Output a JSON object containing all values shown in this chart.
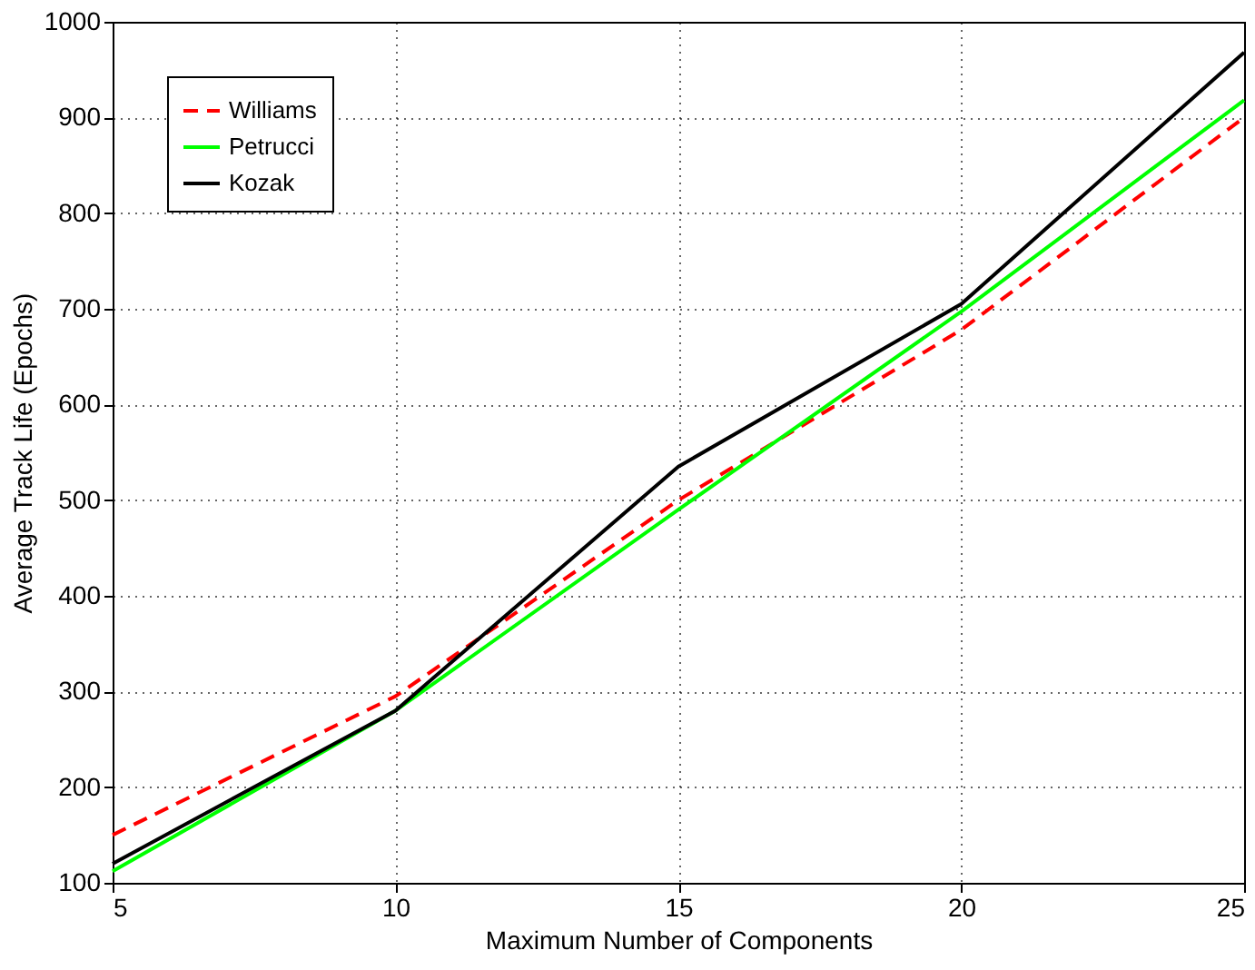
{
  "chart_data": {
    "type": "line",
    "xlabel": "Maximum Number of Components",
    "ylabel": "Average Track Life (Epochs)",
    "x": [
      5,
      10,
      15,
      20,
      25
    ],
    "xlim": [
      5,
      25
    ],
    "xticks": [
      5,
      10,
      15,
      20,
      25
    ],
    "ylim": [
      100,
      1000
    ],
    "yticks": [
      100,
      200,
      300,
      400,
      500,
      600,
      700,
      800,
      900,
      1000
    ],
    "grid": true,
    "legend": "top left",
    "series": [
      {
        "name": "Williams",
        "color": "#ff0000",
        "line_style": "dashed",
        "values": [
          150,
          295,
          500,
          678,
          900
        ]
      },
      {
        "name": "Petrucci",
        "color": "#00ff00",
        "line_style": "solid",
        "values": [
          112,
          280,
          490,
          697,
          918
        ]
      },
      {
        "name": "Kozak",
        "color": "#000000",
        "line_style": "solid",
        "values": [
          120,
          280,
          535,
          705,
          968
        ]
      }
    ]
  }
}
